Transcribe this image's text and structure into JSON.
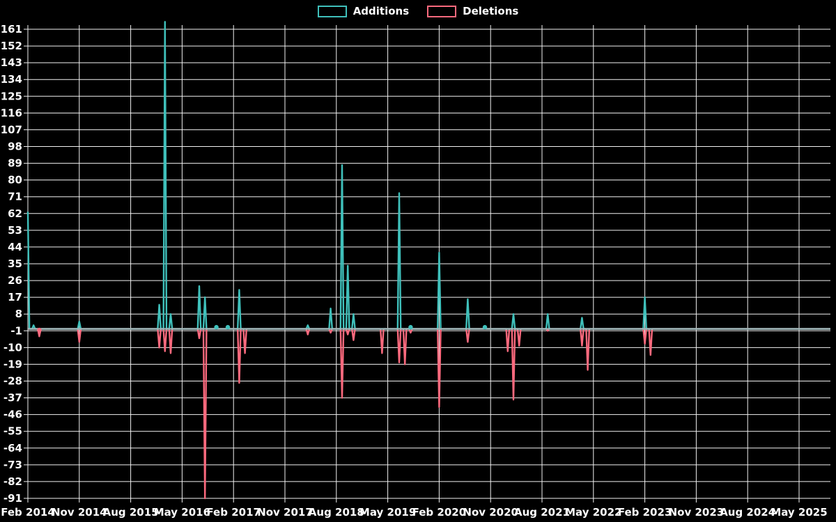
{
  "legend": {
    "items": [
      {
        "label": "Additions",
        "color": "#3fc0bb"
      },
      {
        "label": "Deletions",
        "color": "#fa697d"
      }
    ]
  },
  "chart_data": {
    "type": "line",
    "title": "",
    "xlabel": "",
    "ylabel": "",
    "background": "#000000",
    "grid": true,
    "gridline_color": "#ffffff",
    "baseline_color": "#a3b8ba",
    "legend_position": "top-center",
    "x_axis": {
      "start_month": "Feb 2014",
      "end_month": "Oct 2025",
      "months_total": 141,
      "tick_interval_months": 9,
      "tick_labels": [
        "Feb 2014",
        "Nov 2014",
        "Aug 2015",
        "May 2016",
        "Feb 2017",
        "Nov 2017",
        "Aug 2018",
        "May 2019",
        "Feb 2020",
        "Nov 2020",
        "Aug 2021",
        "May 2022",
        "Feb 2023",
        "Nov 2023",
        "Aug 2024",
        "May 2025"
      ]
    },
    "y_axis": {
      "min": -91,
      "max": 161,
      "step": 9,
      "ticks": [
        161,
        152,
        143,
        134,
        125,
        116,
        107,
        98,
        89,
        80,
        71,
        62,
        53,
        44,
        35,
        26,
        17,
        8,
        -1,
        -10,
        -19,
        -28,
        -37,
        -46,
        -55,
        -64,
        -73,
        -82,
        -91
      ]
    },
    "series": [
      {
        "name": "Additions",
        "color": "#3fc0bb",
        "baseline": 0,
        "events": {
          "Feb 2014": 63,
          "Mar 2014": 2,
          "Nov 2014": 4,
          "Jan 2016": 13,
          "Feb 2016": 165,
          "Mar 2016": 8,
          "Aug 2016": 23,
          "Sep 2016": 17,
          "Nov 2016": 1,
          "Jan 2017": 1,
          "Mar 2017": 21,
          "Mar 2018": 2,
          "Jul 2018": 11,
          "Sep 2018": 88,
          "Oct 2018": 34,
          "Nov 2018": 8,
          "Jul 2019": 73,
          "Sep 2019": 1,
          "Feb 2020": 41,
          "Jul 2020": 16,
          "Oct 2020": 1,
          "Mar 2021": 8,
          "Sep 2021": 8,
          "Mar 2022": 6,
          "Feb 2023": 17
        },
        "point_markers": [
          "Nov 2016",
          "Jan 2017",
          "Sep 2019",
          "Oct 2020"
        ]
      },
      {
        "name": "Deletions",
        "color": "#fa697d",
        "baseline": 0,
        "events": {
          "Apr 2014": -4,
          "Nov 2014": -7,
          "Jan 2016": -10,
          "Feb 2016": -12,
          "Mar 2016": -13,
          "Aug 2016": -5,
          "Sep 2016": -91,
          "Mar 2017": -29,
          "Apr 2017": -13,
          "Mar 2018": -3,
          "Jul 2018": -2,
          "Sep 2018": -37,
          "Oct 2018": -3,
          "Nov 2018": -6,
          "Apr 2019": -13,
          "Jul 2019": -18,
          "Aug 2019": -19,
          "Sep 2019": -2,
          "Feb 2020": -42,
          "Jul 2020": -7,
          "Feb 2021": -12,
          "Mar 2021": -38,
          "Apr 2021": -9,
          "Sep 2021": -1,
          "Mar 2022": -9,
          "Apr 2022": -22,
          "Feb 2023": -8,
          "Mar 2023": -14
        },
        "point_markers": [
          "Apr 2014"
        ]
      }
    ]
  }
}
